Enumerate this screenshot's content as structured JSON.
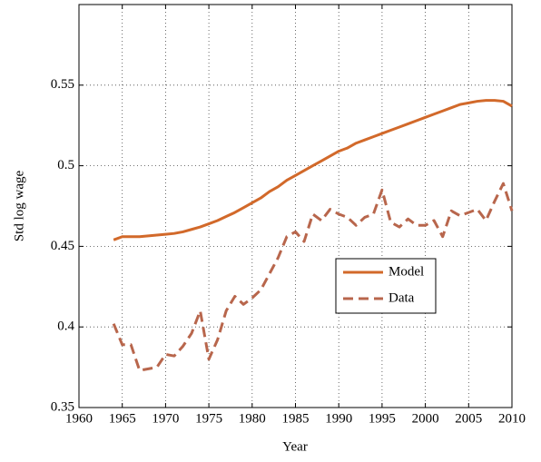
{
  "chart_data": {
    "type": "line",
    "xlabel": "Year",
    "ylabel": "Std log wage",
    "x": [
      1964,
      1965,
      1966,
      1967,
      1968,
      1969,
      1970,
      1971,
      1972,
      1973,
      1974,
      1975,
      1976,
      1977,
      1978,
      1979,
      1980,
      1981,
      1982,
      1983,
      1984,
      1985,
      1986,
      1987,
      1988,
      1989,
      1990,
      1991,
      1992,
      1993,
      1994,
      1995,
      1996,
      1997,
      1998,
      1999,
      2000,
      2001,
      2002,
      2003,
      2004,
      2005,
      2006,
      2007,
      2008,
      2009,
      2010
    ],
    "series": [
      {
        "name": "Model",
        "color": "#d2692a",
        "dash": false,
        "values": [
          0.454,
          0.456,
          0.456,
          0.456,
          0.4565,
          0.457,
          0.4575,
          0.458,
          0.459,
          0.4605,
          0.462,
          0.464,
          0.466,
          0.4685,
          0.471,
          0.474,
          0.477,
          0.48,
          0.484,
          0.487,
          0.491,
          0.494,
          0.497,
          0.5,
          0.503,
          0.506,
          0.509,
          0.511,
          0.514,
          0.516,
          0.518,
          0.52,
          0.522,
          0.524,
          0.526,
          0.528,
          0.53,
          0.532,
          0.534,
          0.536,
          0.538,
          0.539,
          0.54,
          0.5405,
          0.5405,
          0.54,
          0.537
        ]
      },
      {
        "name": "Data",
        "color": "#b8664c",
        "dash": true,
        "values": [
          0.402,
          0.389,
          0.389,
          0.373,
          0.374,
          0.375,
          0.383,
          0.382,
          0.388,
          0.396,
          0.41,
          0.38,
          0.392,
          0.41,
          0.419,
          0.414,
          0.418,
          0.423,
          0.433,
          0.443,
          0.456,
          0.459,
          0.453,
          0.47,
          0.466,
          0.473,
          0.47,
          0.468,
          0.463,
          0.468,
          0.47,
          0.485,
          0.465,
          0.462,
          0.467,
          0.463,
          0.463,
          0.466,
          0.456,
          0.472,
          0.469,
          0.471,
          0.473,
          0.466,
          0.478,
          0.489,
          0.472
        ]
      }
    ],
    "xlim": [
      1960,
      2010
    ],
    "xticks": [
      1960,
      1965,
      1970,
      1975,
      1980,
      1985,
      1990,
      1995,
      2000,
      2005,
      2010
    ],
    "ylim": [
      0.35,
      0.6
    ],
    "yticks": [
      0.35,
      0.4,
      0.45,
      0.5,
      0.55
    ],
    "grid": true,
    "legend": "right"
  }
}
